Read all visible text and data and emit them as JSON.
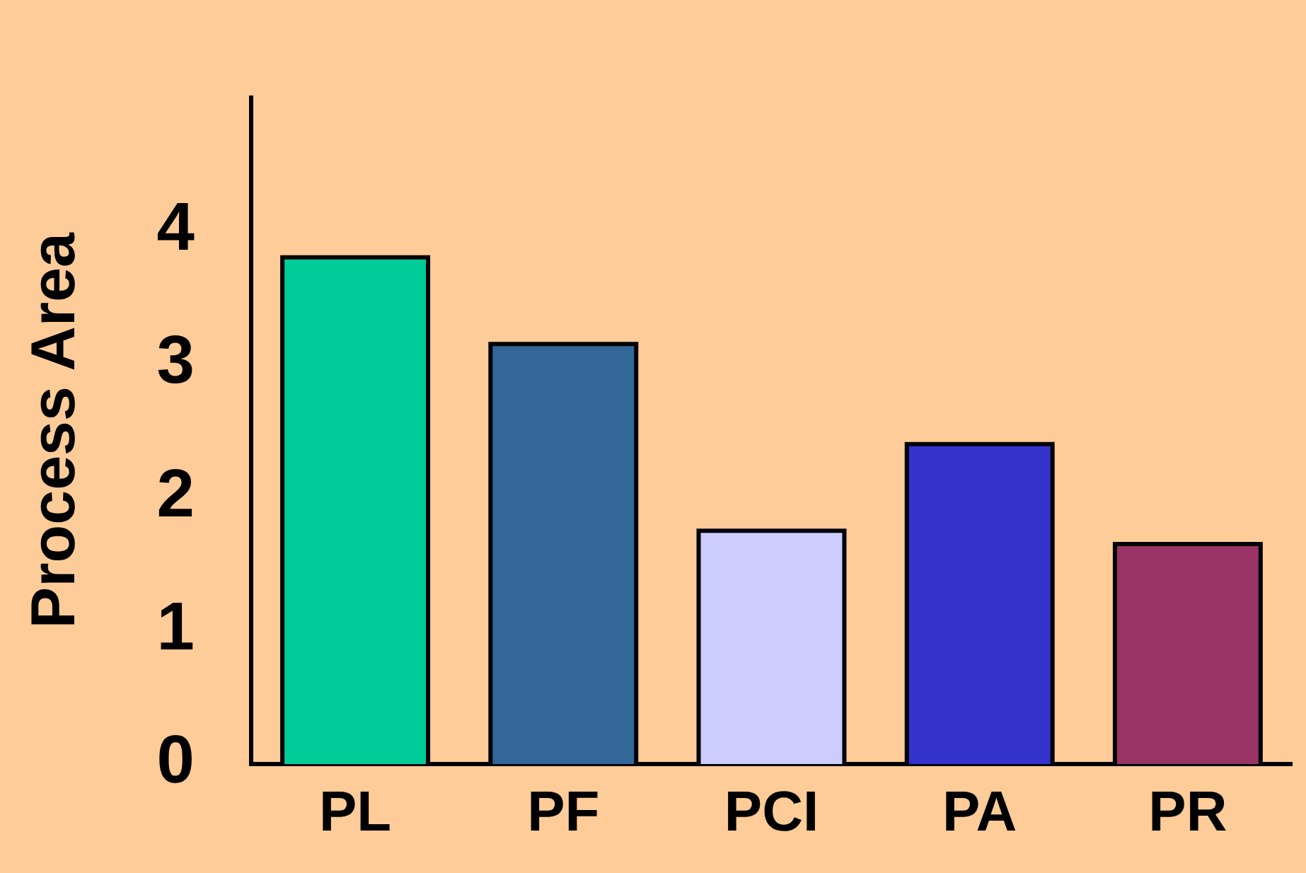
{
  "chart_data": {
    "type": "bar",
    "ylabel": "Process Area",
    "categories": [
      "PL",
      "PF",
      "PCI",
      "PA",
      "PR"
    ],
    "values": [
      3.8,
      3.15,
      1.75,
      2.4,
      1.65
    ],
    "colors": [
      "#00cc99",
      "#336699",
      "#ccccff",
      "#3333cc",
      "#993366"
    ],
    "ylim": [
      0,
      5
    ],
    "yticks": [
      0,
      1,
      2,
      3,
      4
    ],
    "grid": false
  }
}
